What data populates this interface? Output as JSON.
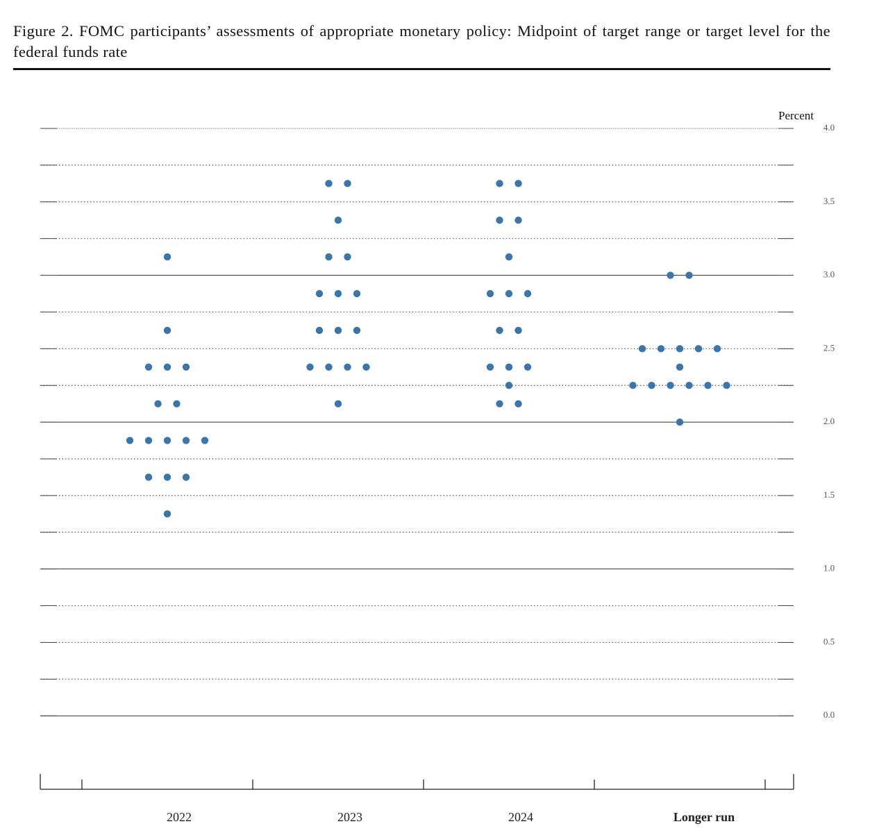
{
  "chart_data": {
    "type": "dot",
    "title": "Figure 2.  FOMC participants’ assessments of appropriate monetary policy:  Midpoint of target range or target level for the federal funds rate",
    "y_label": "Percent",
    "categories": [
      "2022",
      "2023",
      "2024",
      "Longer run"
    ],
    "points": [
      [
        {
          "value": 3.125,
          "count": 1
        },
        {
          "value": 2.625,
          "count": 1
        },
        {
          "value": 2.375,
          "count": 3
        },
        {
          "value": 2.125,
          "count": 2
        },
        {
          "value": 1.875,
          "count": 5
        },
        {
          "value": 1.625,
          "count": 3
        },
        {
          "value": 1.375,
          "count": 1
        }
      ],
      [
        {
          "value": 3.625,
          "count": 2
        },
        {
          "value": 3.375,
          "count": 1
        },
        {
          "value": 3.125,
          "count": 2
        },
        {
          "value": 2.875,
          "count": 3
        },
        {
          "value": 2.625,
          "count": 3
        },
        {
          "value": 2.375,
          "count": 4
        },
        {
          "value": 2.125,
          "count": 1
        }
      ],
      [
        {
          "value": 3.625,
          "count": 2
        },
        {
          "value": 3.375,
          "count": 2
        },
        {
          "value": 3.125,
          "count": 1
        },
        {
          "value": 2.875,
          "count": 3
        },
        {
          "value": 2.625,
          "count": 2
        },
        {
          "value": 2.375,
          "count": 3
        },
        {
          "value": 2.25,
          "count": 1
        },
        {
          "value": 2.125,
          "count": 2
        }
      ],
      [
        {
          "value": 3.0,
          "count": 2
        },
        {
          "value": 2.5,
          "count": 5
        },
        {
          "value": 2.375,
          "count": 1
        },
        {
          "value": 2.25,
          "count": 6
        },
        {
          "value": 2.0,
          "count": 1
        }
      ]
    ],
    "color": "#3a76aa",
    "ylim": [
      -0.5,
      4.0
    ],
    "yticks": [
      {
        "value": 0,
        "label": "0.0"
      },
      0.5,
      {
        "value": 1,
        "label": "1.0"
      },
      1.5,
      {
        "value": 2,
        "label": "2.0"
      },
      2.5,
      {
        "value": 3,
        "label": "3.0"
      },
      3.5,
      {
        "value": 4,
        "label": "4.0"
      }
    ],
    "minor_yticks": [
      0.25,
      0.75,
      1.25,
      1.75,
      2.25,
      2.75,
      3.25,
      3.75
    ],
    "grid": true
  }
}
